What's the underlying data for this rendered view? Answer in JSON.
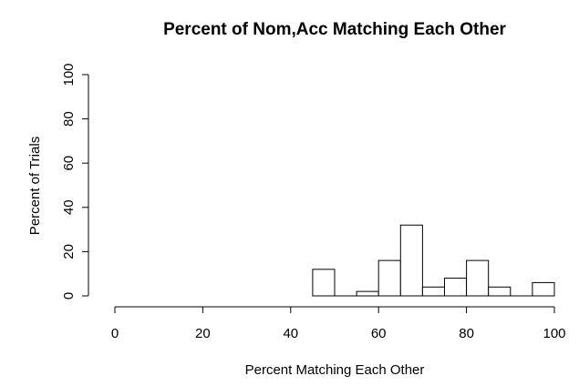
{
  "chart_data": {
    "type": "bar",
    "subtype": "histogram",
    "title": "Percent of Nom,Acc Matching Each Other",
    "xlabel": "Percent Matching Each Other",
    "ylabel": "Percent of Trials",
    "xlim": [
      0,
      100
    ],
    "ylim": [
      0,
      100
    ],
    "x_ticks": [
      0,
      20,
      40,
      60,
      80,
      100
    ],
    "y_ticks": [
      0,
      20,
      40,
      60,
      80,
      100
    ],
    "bins": [
      {
        "start": 45,
        "end": 50,
        "value": 12
      },
      {
        "start": 50,
        "end": 55,
        "value": 0
      },
      {
        "start": 55,
        "end": 60,
        "value": 2
      },
      {
        "start": 60,
        "end": 65,
        "value": 16
      },
      {
        "start": 65,
        "end": 70,
        "value": 32
      },
      {
        "start": 70,
        "end": 75,
        "value": 4
      },
      {
        "start": 75,
        "end": 80,
        "value": 8
      },
      {
        "start": 80,
        "end": 85,
        "value": 16
      },
      {
        "start": 85,
        "end": 90,
        "value": 4
      },
      {
        "start": 90,
        "end": 95,
        "value": 0
      },
      {
        "start": 95,
        "end": 100,
        "value": 6
      }
    ],
    "grid": false,
    "legend": "none",
    "bar_fill": "#ffffff",
    "bar_stroke": "#000000"
  }
}
